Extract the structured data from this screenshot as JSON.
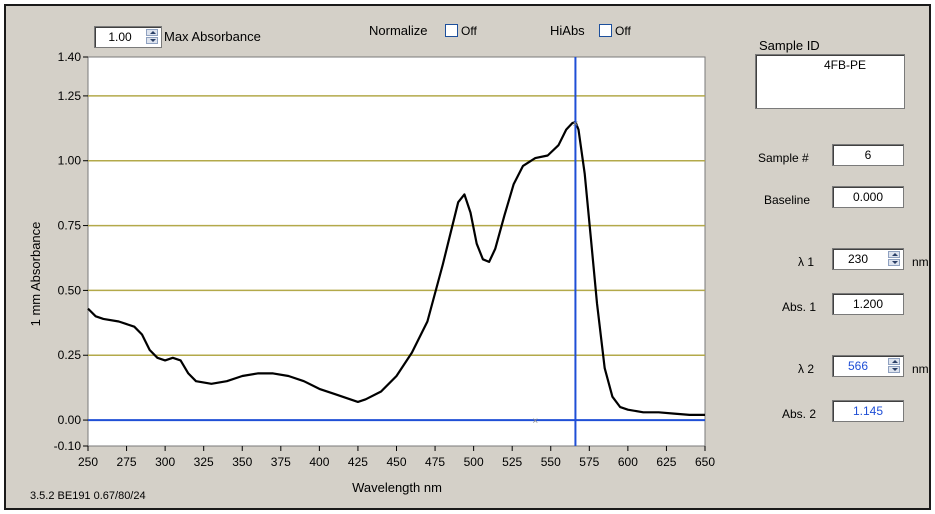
{
  "top_bar": {
    "max_absorbance_value": "1.00",
    "max_absorbance_label": "Max Absorbance",
    "normalize_label": "Normalize",
    "normalize_state": "Off",
    "hiabs_label": "HiAbs",
    "hiabs_state": "Off"
  },
  "right_panel": {
    "sample_id_label": "Sample ID",
    "sample_id_value": "4FB-PE",
    "sample_num_label": "Sample #",
    "sample_num_value": "6",
    "baseline_label": "Baseline",
    "baseline_value": "0.000",
    "lambda1_label": "λ 1",
    "lambda1_value": "230",
    "lambda1_unit": "nm",
    "abs1_label": "Abs. 1",
    "abs1_value": "1.200",
    "lambda2_label": "λ 2",
    "lambda2_value": "566",
    "lambda2_unit": "nm",
    "abs2_label": "Abs. 2",
    "abs2_value": "1.145"
  },
  "footer": {
    "version_text": "3.5.2 BE191 0.67/80/24"
  },
  "colors": {
    "gridline": "#b3a94a",
    "cursor": "#1f4fd6",
    "spectrum": "#000000",
    "window_bg": "#d4d0c8"
  },
  "chart_data": {
    "type": "line",
    "title": "",
    "xlabel": "Wavelength nm",
    "ylabel": "1 mm Absorbance",
    "xlim": [
      250,
      650
    ],
    "ylim": [
      -0.1,
      1.4
    ],
    "x_ticks": [
      250,
      275,
      300,
      325,
      350,
      375,
      400,
      425,
      450,
      475,
      500,
      525,
      550,
      575,
      600,
      625,
      650
    ],
    "y_ticks": [
      {
        "v": 1.4,
        "label": "1.40"
      },
      {
        "v": 1.25,
        "label": "1.25"
      },
      {
        "v": 1.0,
        "label": "1.00"
      },
      {
        "v": 0.75,
        "label": "0.75"
      },
      {
        "v": 0.5,
        "label": "0.50"
      },
      {
        "v": 0.25,
        "label": "0.25"
      },
      {
        "v": 0.0,
        "label": "0.00"
      },
      {
        "v": -0.1,
        "label": "-0.10"
      }
    ],
    "gridlines_y": [
      0.25,
      0.5,
      0.75,
      1.0,
      1.25
    ],
    "baseline_y": 0.0,
    "cursor_x": 566,
    "baseline_marker_x": 540,
    "series": [
      {
        "x": [
          250,
          255,
          260,
          270,
          280,
          285,
          290,
          295,
          300,
          305,
          310,
          315,
          320,
          330,
          340,
          350,
          360,
          370,
          380,
          390,
          400,
          410,
          420,
          425,
          430,
          440,
          450,
          460,
          470,
          480,
          485,
          490,
          494,
          498,
          502,
          506,
          510,
          514,
          520,
          526,
          532,
          540,
          548,
          555,
          560,
          564,
          566,
          568,
          572,
          576,
          580,
          585,
          590,
          595,
          600,
          610,
          620,
          630,
          640,
          648,
          650
        ],
        "y": [
          0.43,
          0.4,
          0.39,
          0.38,
          0.36,
          0.33,
          0.27,
          0.24,
          0.23,
          0.24,
          0.23,
          0.18,
          0.15,
          0.14,
          0.15,
          0.17,
          0.18,
          0.18,
          0.17,
          0.15,
          0.12,
          0.1,
          0.08,
          0.07,
          0.08,
          0.11,
          0.17,
          0.26,
          0.38,
          0.6,
          0.72,
          0.84,
          0.87,
          0.8,
          0.68,
          0.62,
          0.61,
          0.66,
          0.79,
          0.91,
          0.98,
          1.01,
          1.02,
          1.06,
          1.12,
          1.145,
          1.15,
          1.12,
          0.95,
          0.7,
          0.45,
          0.2,
          0.09,
          0.05,
          0.04,
          0.03,
          0.03,
          0.025,
          0.02,
          0.02,
          0.02
        ]
      }
    ]
  }
}
